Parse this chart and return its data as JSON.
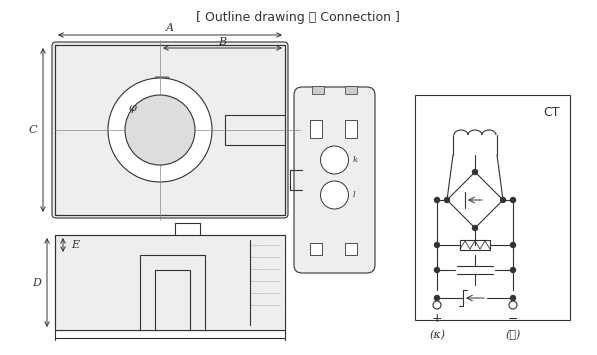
{
  "title": "[ Outline drawing ・ Connection ]",
  "bg_color": "#ffffff",
  "line_color": "#333333",
  "gray_color": "#aaaaaa",
  "label_A": "A",
  "label_B": "B",
  "label_C": "C",
  "label_D": "D",
  "label_E": "E",
  "label_phi": "φ",
  "label_CT": "CT",
  "label_plus": "+",
  "label_minus": "−",
  "label_k": "(κ)",
  "label_l": "(ℓ)"
}
